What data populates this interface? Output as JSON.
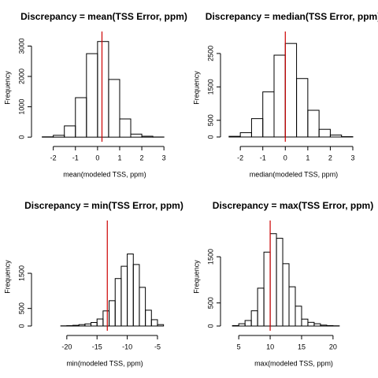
{
  "chart_data": [
    {
      "type": "histogram",
      "title": "Discrepancy = mean(TSS Error, ppm)",
      "xlabel": "mean(modeled TSS, ppm)",
      "ylabel": "Frequency",
      "bins": [
        -2.5,
        -2,
        -1.5,
        -1,
        -0.5,
        0,
        0.5,
        1,
        1.5,
        2,
        2.5,
        3
      ],
      "values": [
        10,
        60,
        370,
        1300,
        2750,
        3150,
        1900,
        600,
        100,
        30,
        5
      ],
      "xlim": [
        -2.7,
        3.35
      ],
      "ylim": [
        -100,
        3350
      ],
      "xticks": [
        -2,
        -1,
        0,
        1,
        2,
        3
      ],
      "yticks": [
        0,
        1000,
        2000,
        3000
      ],
      "color": "#000000",
      "reference_line": {
        "value": 0.2,
        "color": "#cc0000"
      }
    },
    {
      "type": "histogram",
      "title": "Discrepancy = median(TSS Error, ppm)",
      "xlabel": "median(modeled TSS, ppm)",
      "ylabel": "Frequency",
      "bins": [
        -2.5,
        -2,
        -1.5,
        -1,
        -0.5,
        0,
        0.5,
        1,
        1.5,
        2,
        2.5,
        3
      ],
      "values": [
        20,
        130,
        550,
        1350,
        2450,
        2800,
        1750,
        800,
        230,
        60,
        10
      ],
      "xlim": [
        -2.6,
        3.35
      ],
      "ylim": [
        -95,
        3040
      ],
      "xticks": [
        -2,
        -1,
        0,
        1,
        2,
        3
      ],
      "yticks": [
        0,
        500,
        1500,
        2500
      ],
      "color": "#000000",
      "reference_line": {
        "value": 0,
        "color": "#cc0000"
      }
    },
    {
      "type": "histogram",
      "title": "Discrepancy = min(TSS Error, ppm)",
      "xlabel": "min(modeled TSS, ppm)",
      "ylabel": "Frequency",
      "bins": [
        -21,
        -20,
        -19,
        -18,
        -17,
        -16,
        -15,
        -14,
        -13,
        -12,
        -11,
        -10,
        -9,
        -8,
        -7,
        -6,
        -5,
        -4
      ],
      "values": [
        5,
        10,
        20,
        40,
        60,
        100,
        200,
        430,
        720,
        1350,
        1700,
        2050,
        1750,
        1100,
        450,
        180,
        40
      ],
      "xlim": [
        -24.8,
        -2.65
      ],
      "ylim": [
        -90,
        2890
      ],
      "xticks": [
        -20,
        -15,
        -10,
        -5
      ],
      "yticks": [
        0,
        500,
        1500
      ],
      "color": "#000000",
      "reference_line": {
        "value": -13.3,
        "color": "#cc0000"
      }
    },
    {
      "type": "histogram",
      "title": "Discrepancy = max(TSS Error, ppm)",
      "xlabel": "max(modeled TSS, ppm)",
      "ylabel": "Frequency",
      "bins": [
        4,
        5,
        6,
        7,
        8,
        9,
        10,
        11,
        12,
        13,
        14,
        15,
        16,
        17,
        18,
        19,
        20,
        21
      ],
      "values": [
        10,
        50,
        120,
        330,
        820,
        1600,
        2000,
        1900,
        1350,
        850,
        430,
        150,
        80,
        50,
        20,
        10,
        5
      ],
      "xlim": [
        3.1,
        24.4
      ],
      "ylim": [
        -68,
        2200
      ],
      "xticks": [
        5,
        10,
        15,
        20
      ],
      "yticks": [
        0,
        500,
        1500
      ],
      "color": "#000000",
      "reference_line": {
        "value": 10,
        "color": "#cc0000"
      }
    }
  ]
}
